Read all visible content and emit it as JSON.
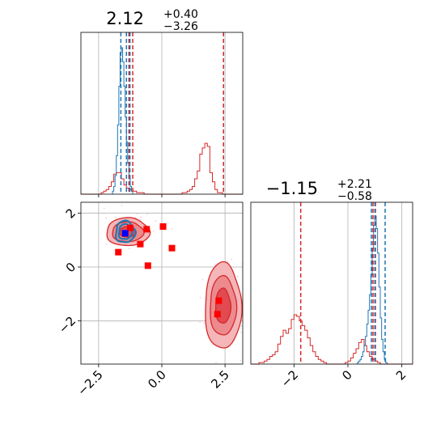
{
  "chart_data": {
    "type": "corner",
    "colors": {
      "red": "#d62728",
      "blue": "#1f77b4",
      "marker_red": "#ff0000",
      "marker_blue": "#0000ff",
      "grid": "#b0b0b0"
    },
    "panels": {
      "x_marginal": {
        "type": "histogram",
        "title_value": "2.12",
        "title_plus": "+0.40",
        "title_minus": "−3.26",
        "xlim": [
          -3.2,
          3.2
        ],
        "ylim": [
          0,
          1.05
        ],
        "grid_x": [
          -2.5,
          0.0,
          2.5
        ],
        "red_bins": {
          "x0": -3.2,
          "dx": 0.1,
          "values": [
            0,
            0,
            0,
            0,
            0,
            0,
            0,
            0,
            0.01,
            0.02,
            0.03,
            0.05,
            0.08,
            0.13,
            0.14,
            0.14,
            0.1,
            0.06,
            0.04,
            0.03,
            0.02,
            0.02,
            0.01,
            0.01,
            0.01,
            0,
            0,
            0,
            0,
            0,
            0,
            0,
            0,
            0,
            0,
            0,
            0,
            0,
            0,
            0,
            0.01,
            0.01,
            0.02,
            0.03,
            0.05,
            0.1,
            0.15,
            0.26,
            0.3,
            0.33,
            0.31,
            0.14,
            0.08,
            0.03,
            0.01,
            0.01,
            0,
            0,
            0,
            0,
            0,
            0,
            0,
            0
          ]
        },
        "blue_bins": {
          "x0": -1.95,
          "dx": 0.05,
          "values": [
            0.02,
            0.05,
            0.12,
            0.25,
            0.45,
            0.7,
            0.92,
            0.95,
            0.86,
            0.7,
            0.5,
            0.34,
            0.2,
            0.1,
            0.05,
            0.02
          ]
        },
        "red_quantiles": [
          -1.3,
          -1.15,
          2.44
        ],
        "blue_quantiles": [
          -1.62,
          -1.4,
          -1.26
        ]
      },
      "y_marginal": {
        "type": "histogram",
        "title_value": "−1.15",
        "title_plus": "+2.21",
        "title_minus": "−0.58",
        "xlim": [
          -3.6,
          2.4
        ],
        "ylim": [
          0,
          1.05
        ],
        "xticks": [
          -2,
          0,
          2
        ],
        "xtick_labels": [
          "−2",
          "0",
          "2"
        ],
        "red_bins": {
          "x0": -3.6,
          "dx": 0.1,
          "values": [
            0,
            0,
            0,
            0.01,
            0.01,
            0.02,
            0.03,
            0.05,
            0.06,
            0.08,
            0.13,
            0.18,
            0.22,
            0.2,
            0.23,
            0.29,
            0.32,
            0.31,
            0.28,
            0.25,
            0.22,
            0.17,
            0.12,
            0.08,
            0.05,
            0.03,
            0.02,
            0.01,
            0,
            0,
            0,
            0,
            0,
            0,
            0,
            0.01,
            0.02,
            0.04,
            0.07,
            0.1,
            0.14,
            0.16,
            0.12,
            0.08,
            0.05,
            0.03,
            0.02,
            0.01,
            0,
            0,
            0,
            0,
            0,
            0,
            0,
            0,
            0,
            0,
            0,
            0
          ]
        },
        "blue_bins": {
          "x0": 0.35,
          "dx": 0.05,
          "values": [
            0.01,
            0.02,
            0.03,
            0.05,
            0.08,
            0.12,
            0.18,
            0.26,
            0.35,
            0.45,
            0.58,
            0.75,
            0.9,
            0.96,
            0.88,
            0.72,
            0.5,
            0.3,
            0.16,
            0.08,
            0.03,
            0.01
          ]
        },
        "red_quantiles": [
          -1.75,
          0.93,
          1.02
        ],
        "blue_quantiles": [
          0.87,
          1.0,
          1.38
        ]
      },
      "joint": {
        "type": "contour_scatter",
        "xlim": [
          -3.2,
          3.2
        ],
        "ylim": [
          -3.6,
          2.4
        ],
        "xticks": [
          -2.5,
          0.0,
          2.5
        ],
        "xtick_labels": [
          "−2.5",
          "0.0",
          "2.5"
        ],
        "yticks": [
          -2,
          0,
          2
        ],
        "ytick_labels": [
          "−2",
          "0",
          "2"
        ],
        "red_modes": [
          {
            "cx": -1.35,
            "cy": 1.3,
            "levels": [
              [
                0.85,
                0.52
              ],
              [
                0.62,
                0.37
              ],
              [
                0.32,
                0.2
              ]
            ]
          },
          {
            "cx": 2.42,
            "cy": -1.45,
            "levels": [
              [
                0.72,
                1.6
              ],
              [
                0.52,
                1.1
              ],
              [
                0.3,
                0.65
              ]
            ]
          }
        ],
        "blue_mode": {
          "cx": -1.45,
          "cy": 1.3,
          "levels": [
            [
              0.38,
              0.4
            ],
            [
              0.26,
              0.28
            ]
          ]
        },
        "red_markers": [
          [
            -1.72,
            0.55
          ],
          [
            -1.25,
            1.45
          ],
          [
            -0.85,
            0.85
          ],
          [
            -0.6,
            1.4
          ],
          [
            0.05,
            1.5
          ],
          [
            0.4,
            0.7
          ],
          [
            -0.55,
            0.05
          ],
          [
            2.25,
            -1.25
          ],
          [
            2.2,
            -1.75
          ]
        ],
        "blue_marker": [
          -1.45,
          1.25
        ]
      }
    }
  }
}
